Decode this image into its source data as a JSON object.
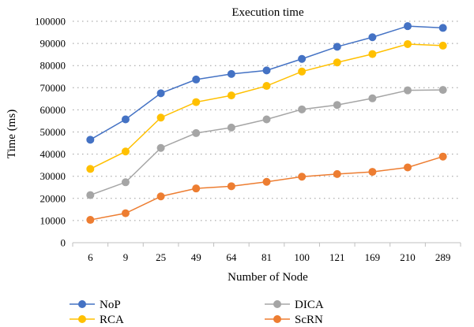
{
  "chart_data": {
    "type": "line",
    "title": "Execution time",
    "xlabel": "Number of Node",
    "ylabel": "Time (ms)",
    "categories": [
      "6",
      "9",
      "25",
      "49",
      "64",
      "81",
      "100",
      "121",
      "169",
      "210",
      "289"
    ],
    "ylim": [
      0,
      100000
    ],
    "yticks": [
      0,
      10000,
      20000,
      30000,
      40000,
      50000,
      60000,
      70000,
      80000,
      90000,
      100000
    ],
    "grid": "horizontal dotted",
    "legend_position": "bottom",
    "series": [
      {
        "name": "NoP",
        "color": "#4472C4",
        "values": [
          46500,
          55700,
          67500,
          73700,
          76200,
          77800,
          83000,
          88500,
          92800,
          97800,
          97000
        ]
      },
      {
        "name": "RCA",
        "color": "#FFC000",
        "values": [
          33300,
          41200,
          56500,
          63500,
          66500,
          70800,
          77300,
          81400,
          85200,
          89700,
          89000
        ]
      },
      {
        "name": "DICA",
        "color": "#A5A5A5",
        "values": [
          21500,
          27300,
          42800,
          49500,
          52000,
          55700,
          60200,
          62200,
          65200,
          68800,
          69000
        ]
      },
      {
        "name": "ScRN",
        "color": "#ED7D31",
        "values": [
          10300,
          13300,
          20900,
          24500,
          25500,
          27500,
          29800,
          31000,
          32000,
          34000,
          38900
        ]
      }
    ]
  }
}
